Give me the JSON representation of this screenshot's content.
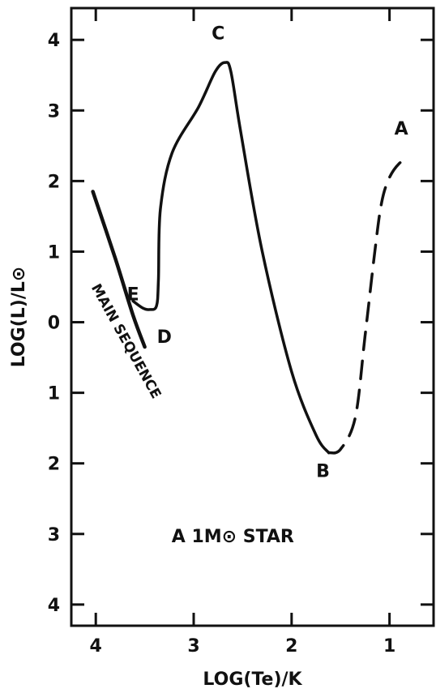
{
  "chart_data": {
    "type": "line",
    "title": "",
    "annotation": "A 1M⊙ STAR",
    "xlabel": "LOG(Te)/K",
    "ylabel": "LOG(L)/L⊙",
    "xlim": [
      4.25,
      0.55
    ],
    "ylim": [
      -4.3,
      4.45
    ],
    "x_ticks": [
      4,
      3,
      2,
      1
    ],
    "x_tick_labels": [
      "4",
      "3",
      "2",
      "1"
    ],
    "y_ticks": [
      4,
      3,
      2,
      1,
      0,
      -1,
      -2,
      -3,
      -4
    ],
    "y_tick_labels": [
      "4",
      "3",
      "2",
      "1",
      "0",
      "1",
      "2",
      "3",
      "4"
    ],
    "grid": false,
    "color": "#111111",
    "series": [
      {
        "name": "",
        "style": "solid",
        "x": [
          4.03,
          3.8,
          3.62,
          3.5
        ],
        "y": [
          1.85,
          0.9,
          0.1,
          -0.35
        ]
      },
      {
        "name": "",
        "style": "solid",
        "x": [
          3.62,
          3.52,
          3.45,
          3.38,
          3.36,
          3.34,
          3.22,
          2.95,
          2.78,
          2.68,
          2.62,
          2.52,
          2.3,
          2.0,
          1.75,
          1.62
        ],
        "y": [
          0.3,
          0.2,
          0.18,
          0.23,
          0.6,
          1.6,
          2.4,
          3.05,
          3.55,
          3.68,
          3.55,
          2.7,
          1.0,
          -0.7,
          -1.6,
          -1.85
        ]
      },
      {
        "name": "",
        "style": "dashed",
        "x": [
          1.62,
          1.5,
          1.35,
          1.25,
          1.15,
          1.08,
          1.0,
          0.9,
          0.82
        ],
        "y": [
          -1.85,
          -1.8,
          -1.35,
          -0.2,
          1.0,
          1.7,
          2.05,
          2.25,
          2.3
        ]
      }
    ],
    "point_labels": [
      {
        "text": "A",
        "x": 0.88,
        "y": 2.75
      },
      {
        "text": "B",
        "x": 1.68,
        "y": -2.1
      },
      {
        "text": "C",
        "x": 2.75,
        "y": 4.1
      },
      {
        "text": "D",
        "x": 3.3,
        "y": -0.2
      },
      {
        "text": "E",
        "x": 3.62,
        "y": 0.4
      }
    ],
    "series_label": {
      "text": "MAIN SEQUENCE"
    }
  }
}
